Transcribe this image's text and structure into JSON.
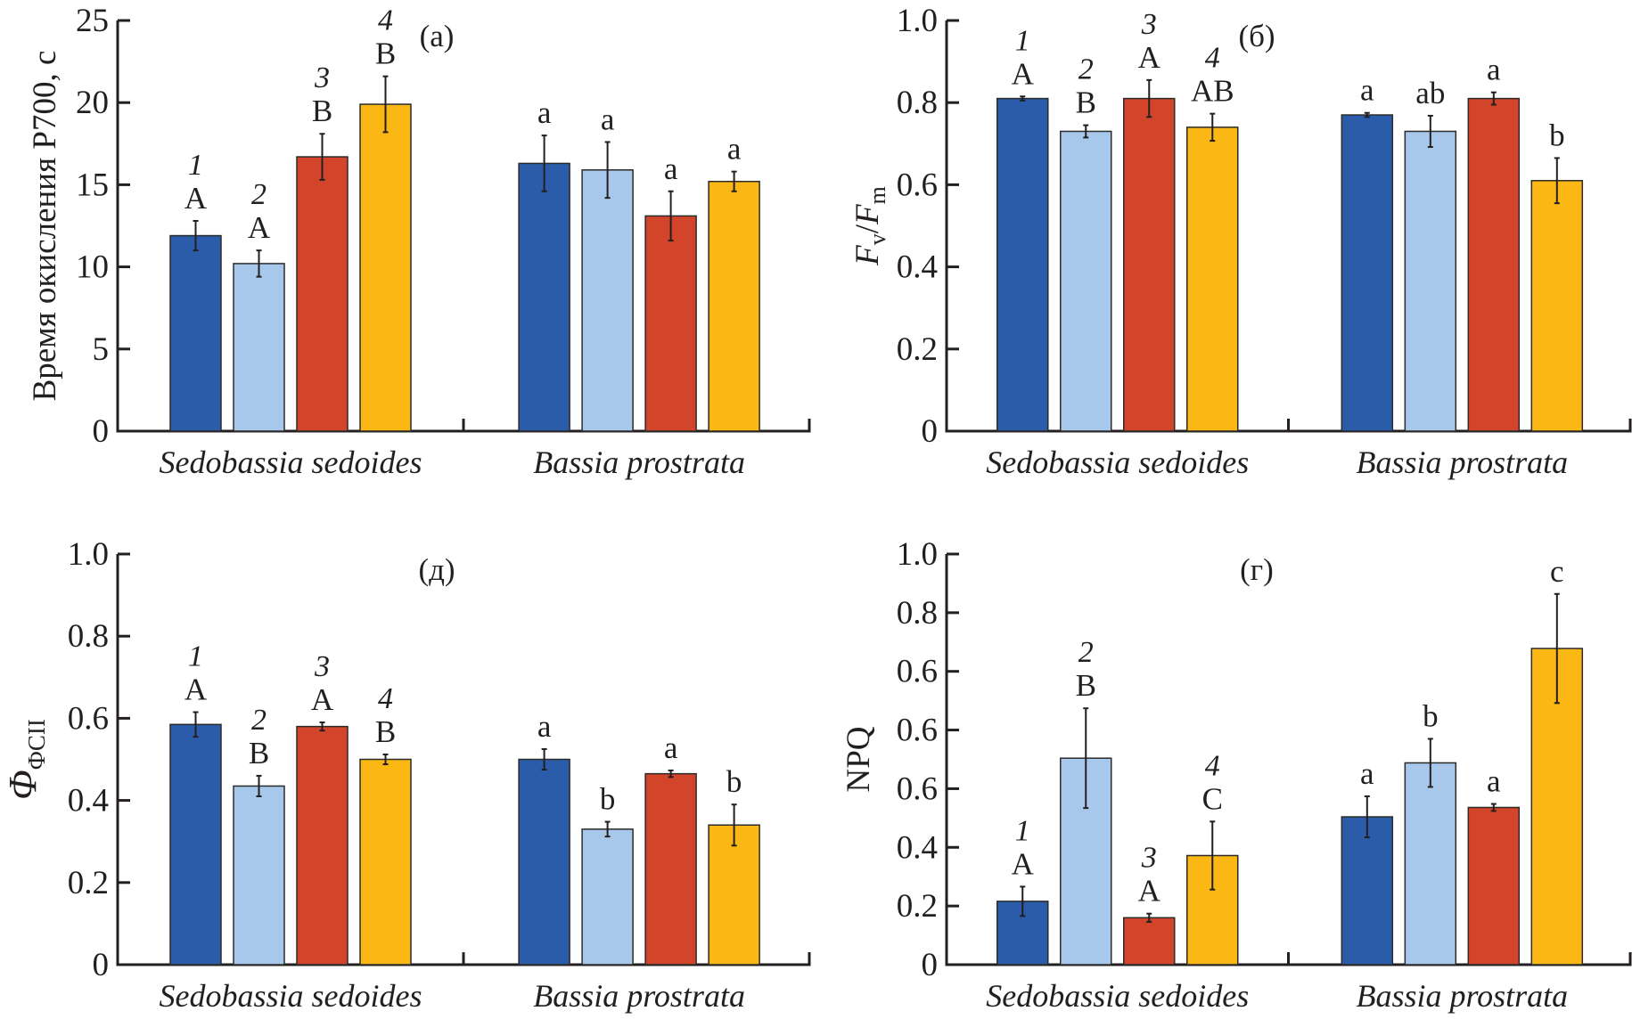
{
  "figure": {
    "series_colors": [
      "#2a5caa",
      "#a7c8ea",
      "#d2452b",
      "#fbb714"
    ]
  },
  "chart_data": [
    {
      "id": "a",
      "type": "bar",
      "panel_label": "(а)",
      "ylabel": "Время окисления P700, с",
      "ylim": [
        0,
        25
      ],
      "yticks": [
        0,
        5,
        10,
        15,
        20,
        25
      ],
      "ytick_labels": [
        "0",
        "5",
        "10",
        "15",
        "20",
        "25"
      ],
      "categories": [
        "Sedobassia sedoides",
        "Bassia prostrata"
      ],
      "series_numbers": [
        "1",
        "2",
        "3",
        "4"
      ],
      "show_series_numbers_in_group": 0,
      "groups": [
        {
          "name": "Sedobassia sedoides",
          "values": [
            11.9,
            10.2,
            16.7,
            19.9
          ],
          "errors": [
            0.9,
            0.8,
            1.4,
            1.7
          ],
          "letters": [
            "A",
            "A",
            "B",
            "B"
          ]
        },
        {
          "name": "Bassia prostrata",
          "values": [
            16.3,
            15.9,
            13.1,
            15.2
          ],
          "errors": [
            1.7,
            1.7,
            1.5,
            0.6
          ],
          "letters": [
            "a",
            "a",
            "a",
            "a"
          ]
        }
      ]
    },
    {
      "id": "b",
      "type": "bar",
      "panel_label": "(б)",
      "ylabel": "Fv/Fm",
      "ylabel_main": "F",
      "ylabel_sub1": "v",
      "ylabel_slash": "/",
      "ylabel_main2": "F",
      "ylabel_sub2": "m",
      "ylim": [
        0,
        1.0
      ],
      "yticks": [
        0,
        0.2,
        0.4,
        0.6,
        0.8,
        1.0
      ],
      "ytick_labels": [
        "0",
        "0.2",
        "0.4",
        "0.6",
        "0.8",
        "1.0"
      ],
      "categories": [
        "Sedobassia sedoides",
        "Bassia prostrata"
      ],
      "series_numbers": [
        "1",
        "2",
        "3",
        "4"
      ],
      "show_series_numbers_in_group": 0,
      "groups": [
        {
          "name": "Sedobassia sedoides",
          "values": [
            0.81,
            0.73,
            0.81,
            0.74
          ],
          "errors": [
            0.005,
            0.015,
            0.045,
            0.033
          ],
          "letters": [
            "A",
            "B",
            "A",
            "AB"
          ]
        },
        {
          "name": "Bassia prostrata",
          "values": [
            0.77,
            0.73,
            0.81,
            0.61
          ],
          "errors": [
            0.005,
            0.038,
            0.015,
            0.055
          ],
          "letters": [
            "a",
            "ab",
            "a",
            "b"
          ]
        }
      ]
    },
    {
      "id": "d",
      "type": "bar",
      "panel_label": "(д)",
      "ylabel": "ΦФСII",
      "ylabel_main": "Φ",
      "ylabel_sub1": "ФСII",
      "ylim": [
        0,
        1.0
      ],
      "yticks": [
        0,
        0.2,
        0.4,
        0.6,
        0.8,
        1.0
      ],
      "ytick_labels": [
        "0",
        "0.2",
        "0.4",
        "0.6",
        "0.8",
        "1.0"
      ],
      "categories": [
        "Sedobassia sedoides",
        "Bassia prostrata"
      ],
      "series_numbers": [
        "1",
        "2",
        "3",
        "4"
      ],
      "show_series_numbers_in_group": 0,
      "groups": [
        {
          "name": "Sedobassia sedoides",
          "values": [
            0.585,
            0.435,
            0.58,
            0.5
          ],
          "errors": [
            0.03,
            0.025,
            0.01,
            0.012
          ],
          "letters": [
            "A",
            "B",
            "A",
            "B"
          ]
        },
        {
          "name": "Bassia prostrata",
          "values": [
            0.5,
            0.33,
            0.465,
            0.34
          ],
          "errors": [
            0.025,
            0.018,
            0.008,
            0.05
          ],
          "letters": [
            "a",
            "b",
            "a",
            "b"
          ]
        }
      ]
    },
    {
      "id": "g",
      "type": "bar",
      "panel_label": "(г)",
      "ylabel": "NPQ",
      "ylim_steps": [
        0,
        7
      ],
      "value_units": "axis tick steps (tick labels as printed: 0, 0.2, 0.4, 0.6, 0.6, 0.6, 0.8, 1.0)",
      "yticks": [
        0,
        1,
        2,
        3,
        4,
        5,
        6,
        7
      ],
      "ytick_labels": [
        "0",
        "0.2",
        "0.4",
        "0.6",
        "0.6",
        "0.6",
        "0.8",
        "1.0"
      ],
      "categories": [
        "Sedobassia sedoides",
        "Bassia prostrata"
      ],
      "series_numbers": [
        "1",
        "2",
        "3",
        "4"
      ],
      "show_series_numbers_in_group": 0,
      "groups": [
        {
          "name": "Sedobassia sedoides",
          "values": [
            1.08,
            3.52,
            0.8,
            1.86
          ],
          "errors": [
            0.25,
            0.85,
            0.07,
            0.58
          ],
          "letters": [
            "A",
            "B",
            "A",
            "C"
          ]
        },
        {
          "name": "Bassia prostrata",
          "values": [
            2.52,
            3.44,
            2.68,
            5.39
          ],
          "errors": [
            0.35,
            0.41,
            0.06,
            0.93
          ],
          "letters": [
            "a",
            "b",
            "a",
            "c"
          ]
        }
      ]
    }
  ]
}
